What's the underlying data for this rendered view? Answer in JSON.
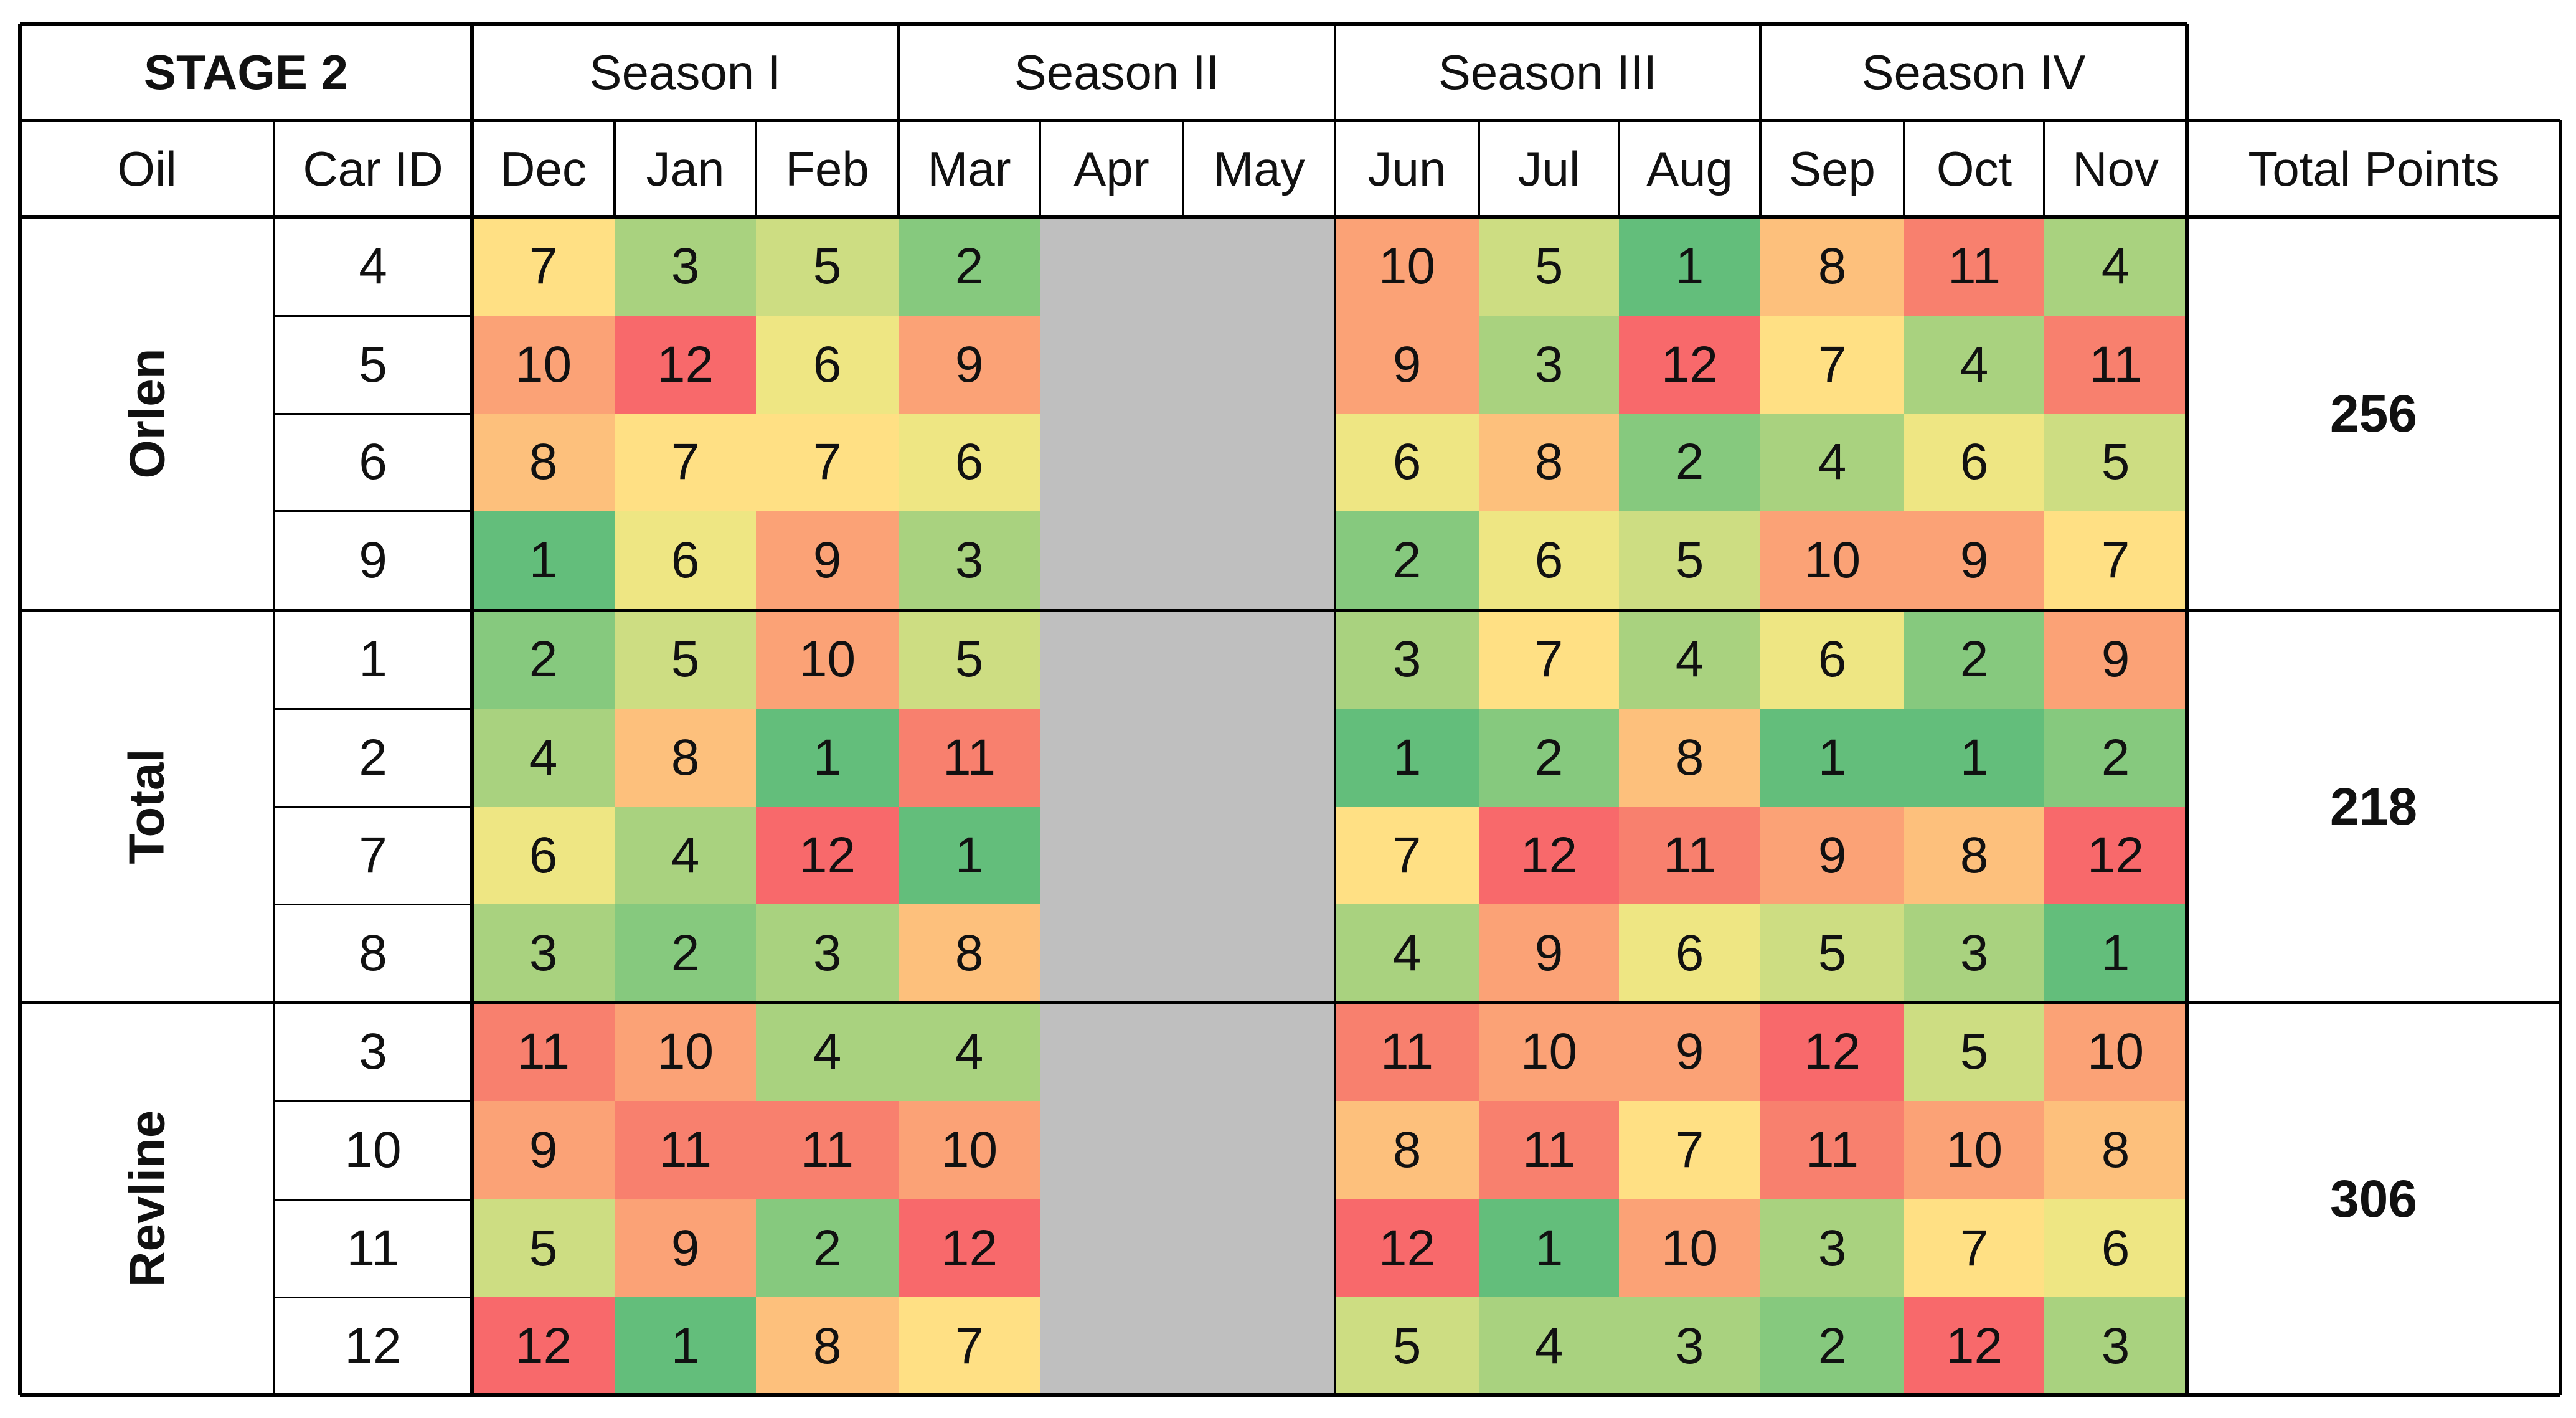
{
  "table": {
    "title": "STAGE 2",
    "seasons": [
      "Season I",
      "Season II",
      "Season III",
      "Season IV"
    ],
    "columns": {
      "oil": "Oil",
      "car_id": "Car ID",
      "months": [
        "Dec",
        "Jan",
        "Feb",
        "Mar",
        "Apr",
        "May",
        "Jun",
        "Jul",
        "Aug",
        "Sep",
        "Oct",
        "Nov"
      ],
      "total": "Total Points"
    },
    "groups": [
      {
        "oil": "Orlen",
        "total_points": "256",
        "rows": [
          {
            "car_id": "4",
            "values": [
              "7",
              "3",
              "5",
              "2",
              "",
              "",
              "10",
              "5",
              "1",
              "8",
              "11",
              "4"
            ]
          },
          {
            "car_id": "5",
            "values": [
              "10",
              "12",
              "6",
              "9",
              "",
              "",
              "9",
              "3",
              "12",
              "7",
              "4",
              "11"
            ]
          },
          {
            "car_id": "6",
            "values": [
              "8",
              "7",
              "7",
              "6",
              "",
              "",
              "6",
              "8",
              "2",
              "4",
              "6",
              "5"
            ]
          },
          {
            "car_id": "9",
            "values": [
              "1",
              "6",
              "9",
              "3",
              "",
              "",
              "2",
              "6",
              "5",
              "10",
              "9",
              "7"
            ]
          }
        ]
      },
      {
        "oil": "Total",
        "total_points": "218",
        "rows": [
          {
            "car_id": "1",
            "values": [
              "2",
              "5",
              "10",
              "5",
              "",
              "",
              "3",
              "7",
              "4",
              "6",
              "2",
              "9"
            ]
          },
          {
            "car_id": "2",
            "values": [
              "4",
              "8",
              "1",
              "11",
              "",
              "",
              "1",
              "2",
              "8",
              "1",
              "1",
              "2"
            ]
          },
          {
            "car_id": "7",
            "values": [
              "6",
              "4",
              "12",
              "1",
              "",
              "",
              "7",
              "12",
              "11",
              "9",
              "8",
              "12"
            ]
          },
          {
            "car_id": "8",
            "values": [
              "3",
              "2",
              "3",
              "8",
              "",
              "",
              "4",
              "9",
              "6",
              "5",
              "3",
              "1"
            ]
          }
        ]
      },
      {
        "oil": "Revline",
        "total_points": "306",
        "rows": [
          {
            "car_id": "3",
            "values": [
              "11",
              "10",
              "4",
              "4",
              "",
              "",
              "11",
              "10",
              "9",
              "12",
              "5",
              "10"
            ]
          },
          {
            "car_id": "10",
            "values": [
              "9",
              "11",
              "11",
              "10",
              "",
              "",
              "8",
              "11",
              "7",
              "11",
              "10",
              "8"
            ]
          },
          {
            "car_id": "11",
            "values": [
              "5",
              "9",
              "2",
              "12",
              "",
              "",
              "12",
              "1",
              "10",
              "3",
              "7",
              "6"
            ]
          },
          {
            "car_id": "12",
            "values": [
              "12",
              "1",
              "8",
              "7",
              "",
              "",
              "5",
              "4",
              "3",
              "2",
              "12",
              "3"
            ]
          }
        ]
      }
    ],
    "colors": {
      "scale": [
        "#63be7b",
        "#86c97e",
        "#a9d27f",
        "#cddd82",
        "#eee683",
        "#ffe084",
        "#fdc07c",
        "#fba276",
        "#f8806e",
        "#f8696b"
      ],
      "blank": "#bfbfbf",
      "border": "#000000"
    }
  }
}
